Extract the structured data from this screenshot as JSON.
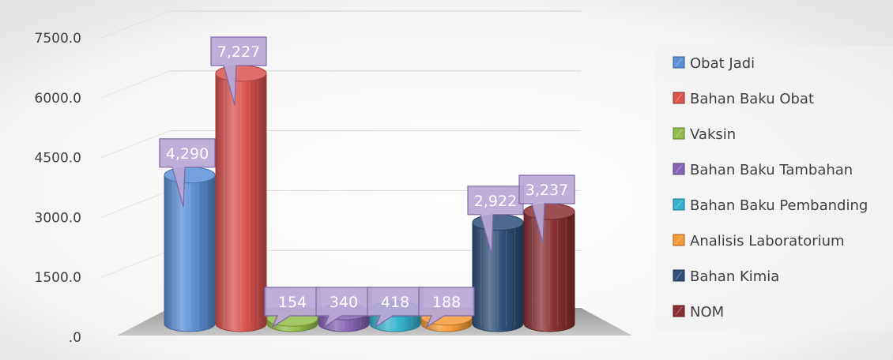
{
  "chart_data": {
    "type": "bar",
    "y_ticks": [
      "7500.0",
      "6000.0",
      "4500.0",
      "3000.0",
      "1500.0",
      ".0"
    ],
    "ylim": [
      0,
      7500
    ],
    "grid": true,
    "legend_position": "right",
    "series": [
      {
        "name": "Obat Jadi",
        "value": 4290,
        "label": "4,290",
        "color": "#5b8fd6"
      },
      {
        "name": "Bahan Baku Obat",
        "value": 7227,
        "label": "7,227",
        "color": "#d9534f"
      },
      {
        "name": "Vaksin",
        "value": 154,
        "label": "154",
        "color": "#93bd4a"
      },
      {
        "name": "Bahan Baku Tambahan",
        "value": 340,
        "label": "340",
        "color": "#8565b3"
      },
      {
        "name": "Bahan Baku Pembanding",
        "value": 418,
        "label": "418",
        "color": "#35b3cc"
      },
      {
        "name": "Analisis Laboratorium",
        "value": 188,
        "label": "188",
        "color": "#f59a3a"
      },
      {
        "name": "Bahan Kimia",
        "value": 2922,
        "label": "2,922",
        "color": "#2f4f7a"
      },
      {
        "name": "NOM",
        "value": 3237,
        "label": "3,237",
        "color": "#8a2f33"
      }
    ]
  }
}
